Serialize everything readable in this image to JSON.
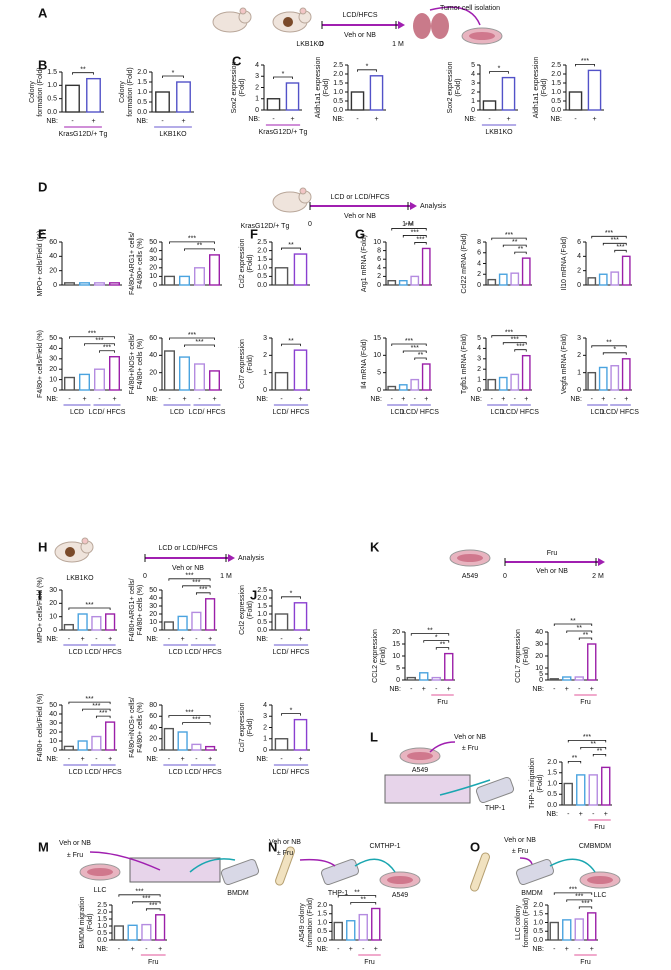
{
  "nb_label": "NB:",
  "nb": [
    "-",
    "+"
  ],
  "letters": [
    "A",
    "B",
    "C",
    "D",
    "E",
    "F",
    "G",
    "H",
    "I",
    "J",
    "K",
    "L",
    "M",
    "N",
    "O"
  ],
  "diagrams": {
    "A": [
      "LCD/HFCS",
      "Veh or NB",
      "0",
      "1 M",
      "Tumor cell isolation",
      "LKB1KO"
    ],
    "D": [
      "KrasG12D/+ Tg",
      "LCD or LCD/HFCS",
      "Veh or NB",
      "0",
      "1 M",
      "Analysis"
    ],
    "H": [
      "LKB1KO",
      "LCD or LCD/HFCS",
      "Veh or NB",
      "0",
      "1 M",
      "Analysis"
    ],
    "K": [
      "A549",
      "0",
      "Fru",
      "Veh or NB",
      "2 M"
    ],
    "L": [
      "Veh or NB",
      "± Fru",
      "A549",
      "THP-1"
    ],
    "M": [
      "Veh or NB",
      "± Fru",
      "LLC",
      "BMDM"
    ],
    "N": [
      "Veh or NB",
      "± Fru",
      "CMTHP-1",
      "THP-1",
      "A549"
    ],
    "O": [
      "Veh or NB",
      "± Fru",
      "CMBMDM",
      "BMDM",
      "LLC"
    ]
  },
  "charts": {
    "B": [
      {
        "ylabel": [
          "Colony",
          "formation (Fold)"
        ],
        "ylim": [
          0,
          1.5
        ],
        "yticks": [
          {
            "value": 0,
            "label": "0.0"
          },
          0.5,
          {
            "value": 1,
            "label": "1.0"
          },
          1.5
        ],
        "values": [
          1.0,
          1.25
        ],
        "colors": [
          "#333333",
          "#5252c8"
        ],
        "sig": [
          "**"
        ],
        "groups": [
          "KrasG12D/+ Tg"
        ]
      },
      {
        "ylabel": [
          "Colony",
          "formation (Fold)"
        ],
        "ylim": [
          0,
          2
        ],
        "yticks": [
          {
            "value": 0,
            "label": "0.0"
          },
          0.5,
          {
            "value": 1,
            "label": "1.0"
          },
          1.5,
          {
            "value": 2,
            "label": "2.0"
          }
        ],
        "values": [
          1.0,
          1.5
        ],
        "colors": [
          "#333333",
          "#5252c8"
        ],
        "sig": [
          "*"
        ],
        "groups": [
          "LKB1KO"
        ]
      }
    ],
    "C": [
      {
        "ylabel": [
          "Sox2 expression",
          "(Fold)"
        ],
        "ylim": [
          0,
          4
        ],
        "yticks": [
          0,
          1,
          2,
          3,
          4
        ],
        "values": [
          1.0,
          2.4
        ],
        "colors": [
          "#333333",
          "#5252c8"
        ],
        "sig": [
          "*"
        ],
        "groups": [
          "KrasG12D/+ Tg"
        ]
      },
      {
        "ylabel": [
          "Aldh1a1 expression",
          "(Fold)"
        ],
        "ylim": [
          0,
          2.5
        ],
        "yticks": [
          {
            "value": 0,
            "label": "0.0"
          },
          0.5,
          {
            "value": 1,
            "label": "1.0"
          },
          1.5,
          {
            "value": 2,
            "label": "2.0"
          },
          2.5
        ],
        "values": [
          1.0,
          1.9
        ],
        "colors": [
          "#333333",
          "#5252c8"
        ],
        "sig": [
          "*"
        ],
        "groups": []
      },
      {
        "ylabel": [
          "Sox2 expression",
          "(Fold)"
        ],
        "ylim": [
          0,
          5
        ],
        "yticks": [
          0,
          1,
          2,
          3,
          4,
          5
        ],
        "values": [
          1.0,
          3.6
        ],
        "colors": [
          "#333333",
          "#5252c8"
        ],
        "sig": [
          "*"
        ],
        "groups": [
          "LKB1KO"
        ]
      },
      {
        "ylabel": [
          "Aldh1a1 expression",
          "(Fold)"
        ],
        "ylim": [
          0,
          2.5
        ],
        "yticks": [
          {
            "value": 0,
            "label": "0.0"
          },
          0.5,
          {
            "value": 1,
            "label": "1.0"
          },
          1.5,
          {
            "value": 2,
            "label": "2.0"
          },
          2.5
        ],
        "values": [
          1.0,
          2.2
        ],
        "colors": [
          "#333333",
          "#5252c8"
        ],
        "sig": [
          "***"
        ],
        "groups": []
      }
    ],
    "E": [
      {
        "ylabel": [
          "MPO+ cells/Field (%)"
        ],
        "ylim": [
          0,
          60
        ],
        "yticks": [
          0,
          20,
          40,
          60
        ],
        "values": [
          3,
          3,
          3,
          3
        ],
        "colors": [
          "#555555",
          "#4aa3df",
          "#b48be0",
          "#9b1fa8"
        ],
        "sig": [],
        "groups": []
      },
      {
        "ylabel": [
          "F4/80+ARG1+ cells/",
          "F4/80+ cells (%)"
        ],
        "ylim": [
          0,
          50
        ],
        "yticks": [
          0,
          10,
          20,
          30,
          40,
          50
        ],
        "values": [
          10,
          10,
          20,
          35
        ],
        "colors": [
          "#555555",
          "#4aa3df",
          "#b48be0",
          "#9b1fa8"
        ],
        "sig": [
          "***",
          "**"
        ],
        "groups": []
      },
      {
        "ylabel": [
          "F4/80+ cells/Field (%)"
        ],
        "ylim": [
          0,
          50
        ],
        "yticks": [
          0,
          10,
          20,
          30,
          40,
          50
        ],
        "values": [
          12,
          15,
          20,
          32
        ],
        "colors": [
          "#555555",
          "#4aa3df",
          "#b48be0",
          "#9b1fa8"
        ],
        "sig": [
          "***",
          "***",
          "***"
        ],
        "groups": [
          "LCD",
          "LCD/ HFCS"
        ]
      },
      {
        "ylabel": [
          "F4/80+iNOS+ cells/",
          "F4/80+ cells (%)"
        ],
        "ylim": [
          0,
          60
        ],
        "yticks": [
          0,
          20,
          40,
          60
        ],
        "values": [
          45,
          38,
          30,
          22
        ],
        "colors": [
          "#555555",
          "#4aa3df",
          "#b48be0",
          "#9b1fa8"
        ],
        "sig": [
          "***",
          "***"
        ],
        "groups": [
          "LCD",
          "LCD/ HFCS"
        ]
      }
    ],
    "F": [
      {
        "ylabel": [
          "Ccl2 expression",
          "(Fold)"
        ],
        "ylim": [
          0,
          2.5
        ],
        "yticks": [
          {
            "value": 0,
            "label": "0.0"
          },
          0.5,
          {
            "value": 1,
            "label": "1.0"
          },
          1.5,
          {
            "value": 2,
            "label": "2.0"
          },
          2.5
        ],
        "values": [
          1.0,
          1.8
        ],
        "colors": [
          "#555555",
          "#8a3fd0"
        ],
        "sig": [
          "**"
        ],
        "groups": []
      },
      {
        "ylabel": [
          "Ccl7 expression",
          "(Fold)"
        ],
        "ylim": [
          0,
          3
        ],
        "yticks": [
          0,
          1,
          2,
          3
        ],
        "values": [
          1.0,
          2.3
        ],
        "colors": [
          "#555555",
          "#8a3fd0"
        ],
        "sig": [
          "**"
        ],
        "groups": [
          "LCD/ HFCS"
        ]
      }
    ],
    "G": [
      {
        "ylabel": [
          "Arg1 mRNA (Fold)"
        ],
        "ylim": [
          0,
          10
        ],
        "yticks": [
          0,
          2,
          4,
          6,
          8,
          10
        ],
        "values": [
          1,
          1,
          2,
          8.5
        ],
        "colors": [
          "#555555",
          "#4aa3df",
          "#b48be0",
          "#9b1fa8"
        ],
        "sig": [
          "***",
          "***",
          "***"
        ],
        "groups": []
      },
      {
        "ylabel": [
          "Ccl22 mRNA (Fold)"
        ],
        "ylim": [
          0,
          8
        ],
        "yticks": [
          0,
          2,
          4,
          6,
          8
        ],
        "values": [
          1,
          2,
          2.2,
          5
        ],
        "colors": [
          "#555555",
          "#4aa3df",
          "#b48be0",
          "#9b1fa8"
        ],
        "sig": [
          "***",
          "**",
          "**"
        ],
        "groups": []
      },
      {
        "ylabel": [
          "Il10 mRNA (Fold)"
        ],
        "ylim": [
          0,
          6
        ],
        "yticks": [
          0,
          2,
          4,
          6
        ],
        "values": [
          1,
          1.5,
          1.8,
          4
        ],
        "colors": [
          "#555555",
          "#4aa3df",
          "#b48be0",
          "#9b1fa8"
        ],
        "sig": [
          "***",
          "***",
          "***"
        ],
        "groups": []
      },
      {
        "ylabel": [
          "Il4 mRNA (Fold)"
        ],
        "ylim": [
          0,
          15
        ],
        "yticks": [
          0,
          5,
          10,
          15
        ],
        "values": [
          1,
          1.5,
          3,
          7.5
        ],
        "colors": [
          "#555555",
          "#4aa3df",
          "#b48be0",
          "#9b1fa8"
        ],
        "sig": [
          "***",
          "***",
          "**"
        ],
        "groups": [
          "LCD",
          "LCD/ HFCS"
        ]
      },
      {
        "ylabel": [
          "Tgfb1 mRNA (Fold)"
        ],
        "ylim": [
          0,
          5
        ],
        "yticks": [
          0,
          1,
          2,
          3,
          4,
          5
        ],
        "values": [
          1,
          1.2,
          1.5,
          3.3
        ],
        "colors": [
          "#555555",
          "#4aa3df",
          "#b48be0",
          "#9b1fa8"
        ],
        "sig": [
          "***",
          "***",
          "***"
        ],
        "groups": [
          "LCD",
          "LCD/ HFCS"
        ]
      },
      {
        "ylabel": [
          "Vegfa mRNA (Fold)"
        ],
        "ylim": [
          0,
          3
        ],
        "yticks": [
          0,
          1,
          2,
          3
        ],
        "values": [
          1,
          1.3,
          1.4,
          1.8
        ],
        "colors": [
          "#555555",
          "#4aa3df",
          "#b48be0",
          "#9b1fa8"
        ],
        "sig": [
          "**",
          "*"
        ],
        "groups": [
          "LCD",
          "LCD/ HFCS"
        ]
      }
    ],
    "I": [
      {
        "ylabel": [
          "MPO+ cells/Field (%)"
        ],
        "ylim": [
          0,
          30
        ],
        "yticks": [
          0,
          10,
          20,
          30
        ],
        "values": [
          4,
          12,
          10,
          12
        ],
        "colors": [
          "#555555",
          "#4aa3df",
          "#b48be0",
          "#9b1fa8"
        ],
        "sig": [
          "***"
        ],
        "groups": [
          "LCD",
          "LCD/ HFCS"
        ]
      },
      {
        "ylabel": [
          "F4/80+ARG1+ cells/",
          "F4/80+ cells (%)"
        ],
        "ylim": [
          0,
          50
        ],
        "yticks": [
          0,
          10,
          20,
          30,
          40,
          50
        ],
        "values": [
          10,
          17,
          22,
          39
        ],
        "colors": [
          "#555555",
          "#4aa3df",
          "#b48be0",
          "#9b1fa8"
        ],
        "sig": [
          "***",
          "***",
          "***"
        ],
        "groups": [
          "LCD",
          "LCD/ HFCS"
        ]
      },
      {
        "ylabel": [
          "F4/80+ cells/Field (%)"
        ],
        "ylim": [
          0,
          50
        ],
        "yticks": [
          0,
          10,
          20,
          30,
          40,
          50
        ],
        "values": [
          4,
          10,
          15,
          31
        ],
        "colors": [
          "#555555",
          "#4aa3df",
          "#b48be0",
          "#9b1fa8"
        ],
        "sig": [
          "***",
          "***",
          "***"
        ],
        "groups": [
          "LCD",
          "LCD/ HFCS"
        ]
      },
      {
        "ylabel": [
          "F4/80+iNOS+ cells/",
          "F4/80+ cells (%)"
        ],
        "ylim": [
          0,
          80
        ],
        "yticks": [
          0,
          20,
          40,
          60,
          80
        ],
        "values": [
          38,
          32,
          10,
          6
        ],
        "colors": [
          "#555555",
          "#4aa3df",
          "#b48be0",
          "#9b1fa8"
        ],
        "sig": [
          "***",
          "***"
        ],
        "groups": [
          "LCD",
          "LCD/ HFCS"
        ]
      }
    ],
    "J": [
      {
        "ylabel": [
          "Ccl2 expression",
          "(Fold)"
        ],
        "ylim": [
          0,
          2.5
        ],
        "yticks": [
          {
            "value": 0,
            "label": "0.0"
          },
          0.5,
          {
            "value": 1,
            "label": "1.0"
          },
          1.5,
          {
            "value": 2,
            "label": "2.0"
          },
          2.5
        ],
        "values": [
          1.0,
          1.7
        ],
        "colors": [
          "#555555",
          "#8a3fd0"
        ],
        "sig": [
          "*"
        ],
        "groups": [
          "LCD/ HFCS"
        ]
      },
      {
        "ylabel": [
          "Ccl7 expression",
          "(Fold)"
        ],
        "ylim": [
          0,
          4
        ],
        "yticks": [
          0,
          1,
          2,
          3,
          4
        ],
        "values": [
          1.0,
          2.7
        ],
        "colors": [
          "#555555",
          "#8a3fd0"
        ],
        "sig": [
          "*"
        ],
        "groups": [
          "LCD/ HFCS"
        ]
      }
    ],
    "K": [
      {
        "ylabel": [
          "CCL2 expression",
          "(Fold)"
        ],
        "ylim": [
          0,
          20
        ],
        "yticks": [
          0,
          5,
          10,
          15,
          20
        ],
        "values": [
          1,
          3,
          1,
          11
        ],
        "colors": [
          "#555555",
          "#4aa3df",
          "#b48be0",
          "#9b1fa8"
        ],
        "sig": [
          "**",
          "*",
          "**"
        ],
        "groups": [
          "Fru"
        ]
      },
      {
        "ylabel": [
          "CCL7 expression",
          "(Fold)"
        ],
        "ylim": [
          0,
          40
        ],
        "yticks": [
          0,
          5,
          10,
          20,
          30,
          40
        ],
        "values": [
          1,
          2.5,
          2.5,
          30
        ],
        "colors": [
          "#555555",
          "#4aa3df",
          "#b48be0",
          "#9b1fa8"
        ],
        "sig": [
          "**",
          "**",
          "**"
        ],
        "groups": [
          "Fru"
        ]
      }
    ],
    "L": [
      {
        "ylabel": [
          "THP-1 migration",
          "(Fold)"
        ],
        "ylim": [
          0,
          2
        ],
        "yticks": [
          {
            "value": 0,
            "label": "0.0"
          },
          0.5,
          {
            "value": 1,
            "label": "1.0"
          },
          1.5,
          {
            "value": 2,
            "label": "2.0"
          }
        ],
        "values": [
          1,
          1.4,
          1.4,
          1.75
        ],
        "colors": [
          "#555555",
          "#4aa3df",
          "#b48be0",
          "#9b1fa8"
        ],
        "sig": [
          "***",
          "**",
          "**",
          "**"
        ],
        "groups": [
          "Fru"
        ]
      }
    ],
    "M": [
      {
        "ylabel": [
          "BMDM migration",
          "(Fold)"
        ],
        "ylim": [
          0,
          2.5
        ],
        "yticks": [
          {
            "value": 0,
            "label": "0.0"
          },
          0.5,
          {
            "value": 1,
            "label": "1.0"
          },
          1.5,
          {
            "value": 2,
            "label": "2.0"
          },
          2.5
        ],
        "values": [
          1,
          1.05,
          1.1,
          1.8
        ],
        "colors": [
          "#555555",
          "#4aa3df",
          "#b48be0",
          "#9b1fa8"
        ],
        "sig": [
          "***",
          "***",
          "***"
        ],
        "groups": [
          "Fru"
        ]
      }
    ],
    "N": [
      {
        "ylabel": [
          "A549 colony",
          "formation (Fold)"
        ],
        "ylim": [
          0,
          2
        ],
        "yticks": [
          {
            "value": 0,
            "label": "0.0"
          },
          0.5,
          {
            "value": 1,
            "label": "1.0"
          },
          1.5,
          {
            "value": 2,
            "label": "2.0"
          }
        ],
        "values": [
          1,
          1.1,
          1.45,
          1.8
        ],
        "colors": [
          "#555555",
          "#4aa3df",
          "#b48be0",
          "#9b1fa8"
        ],
        "sig": [
          "**",
          "**"
        ],
        "groups": [
          "Fru"
        ]
      }
    ],
    "O": [
      {
        "ylabel": [
          "LLC colony",
          "formation (Fold)"
        ],
        "ylim": [
          0,
          2
        ],
        "yticks": [
          {
            "value": 0,
            "label": "0.0"
          },
          0.5,
          {
            "value": 1,
            "label": "1.0"
          },
          1.5,
          {
            "value": 2,
            "label": "2.0"
          }
        ],
        "values": [
          1,
          1.15,
          1.2,
          1.55
        ],
        "colors": [
          "#555555",
          "#4aa3df",
          "#b48be0",
          "#9b1fa8"
        ],
        "sig": [
          "***",
          "***",
          "***"
        ],
        "groups": [
          "Fru"
        ]
      }
    ]
  }
}
